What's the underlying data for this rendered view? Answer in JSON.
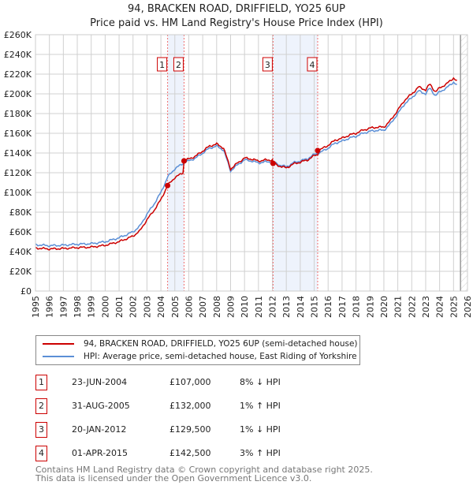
{
  "title": "94, BRACKEN ROAD, DRIFFIELD, YO25 6UP",
  "subtitle": "Price paid vs. HM Land Registry's House Price Index (HPI)",
  "chart_data": {
    "type": "line",
    "title": "94, BRACKEN ROAD, DRIFFIELD, YO25 6UP",
    "xlim": [
      1995,
      2026
    ],
    "ylim": [
      0,
      260000
    ],
    "x_ticks": [
      "1995",
      "1996",
      "1997",
      "1998",
      "1999",
      "2000",
      "2001",
      "2002",
      "2003",
      "2004",
      "2005",
      "2006",
      "2007",
      "2008",
      "2009",
      "2010",
      "2011",
      "2012",
      "2013",
      "2014",
      "2015",
      "2016",
      "2017",
      "2018",
      "2019",
      "2020",
      "2021",
      "2022",
      "2023",
      "2024",
      "2025",
      "2026"
    ],
    "y_ticks": [
      {
        "value": 0,
        "label": "£0"
      },
      {
        "value": 20000,
        "label": "£20K"
      },
      {
        "value": 40000,
        "label": "£40K"
      },
      {
        "value": 60000,
        "label": "£60K"
      },
      {
        "value": 80000,
        "label": "£80K"
      },
      {
        "value": 100000,
        "label": "£100K"
      },
      {
        "value": 120000,
        "label": "£120K"
      },
      {
        "value": 140000,
        "label": "£140K"
      },
      {
        "value": 160000,
        "label": "£160K"
      },
      {
        "value": 180000,
        "label": "£180K"
      },
      {
        "value": 200000,
        "label": "£200K"
      },
      {
        "value": 220000,
        "label": "£220K"
      },
      {
        "value": 240000,
        "label": "£240K"
      },
      {
        "value": 260000,
        "label": "£260K"
      }
    ],
    "grid": true,
    "forecast_from": 2025.5,
    "shaded_ranges": [
      [
        2004.48,
        2005.66
      ],
      [
        2012.05,
        2015.25
      ]
    ],
    "series": [
      {
        "name": "94, BRACKEN ROAD, DRIFFIELD, YO25 6UP (semi-detached house)",
        "color": "#cc0000",
        "derived_from_sales": true
      },
      {
        "name": "HPI: Average price, semi-detached house, East Riding of Yorkshire",
        "color": "#5b8fd6",
        "x": [
          1995,
          1996,
          1997,
          1998,
          1999,
          2000,
          2001,
          2002,
          2002.5,
          2003,
          2003.5,
          2004,
          2004.5,
          2005,
          2005.7,
          2006,
          2006.5,
          2007,
          2007.5,
          2008,
          2008.5,
          2009,
          2009.5,
          2010,
          2010.5,
          2011,
          2011.5,
          2012,
          2012.5,
          2013,
          2013.5,
          2014,
          2014.5,
          2015,
          2015.5,
          2016,
          2016.5,
          2017,
          2017.5,
          2018,
          2018.5,
          2019,
          2019.5,
          2020,
          2020.5,
          2021,
          2021.5,
          2022,
          2022.5,
          2023,
          2023.3,
          2023.7,
          2024,
          2024.5,
          2025,
          2025.3
        ],
        "y": [
          47000,
          46000,
          46500,
          47500,
          48000,
          50000,
          54000,
          60000,
          66000,
          78000,
          88000,
          100000,
          116000,
          124000,
          130500,
          132000,
          135000,
          140000,
          145000,
          147000,
          143000,
          122000,
          128000,
          133000,
          132000,
          130000,
          131000,
          131000,
          128000,
          126000,
          130000,
          132000,
          134000,
          138500,
          141000,
          145000,
          150000,
          152000,
          155000,
          157000,
          160000,
          162000,
          163000,
          163000,
          170000,
          180000,
          190000,
          196000,
          203000,
          200000,
          206000,
          198000,
          202000,
          206000,
          212000,
          208000
        ]
      }
    ],
    "sales": [
      {
        "n": "1",
        "x": 2004.48,
        "date": "23-JUN-2004",
        "price": 107000,
        "price_label": "£107,000",
        "hpi": "8% ↓ HPI"
      },
      {
        "n": "2",
        "x": 2005.66,
        "date": "31-AUG-2005",
        "price": 132000,
        "price_label": "£132,000",
        "hpi": "1% ↑ HPI"
      },
      {
        "n": "3",
        "x": 2012.05,
        "date": "20-JAN-2012",
        "price": 129500,
        "price_label": "£129,500",
        "hpi": "1% ↓ HPI"
      },
      {
        "n": "4",
        "x": 2015.25,
        "date": "01-APR-2015",
        "price": 142500,
        "price_label": "£142,500",
        "hpi": "3% ↑ HPI"
      }
    ]
  },
  "legend": {
    "property": "94, BRACKEN ROAD, DRIFFIELD, YO25 6UP (semi-detached house)",
    "hpi": "HPI: Average price, semi-detached house, East Riding of Yorkshire"
  },
  "footer": {
    "line1": "Contains HM Land Registry data © Crown copyright and database right 2025.",
    "line2": "This data is licensed under the Open Government Licence v3.0."
  }
}
